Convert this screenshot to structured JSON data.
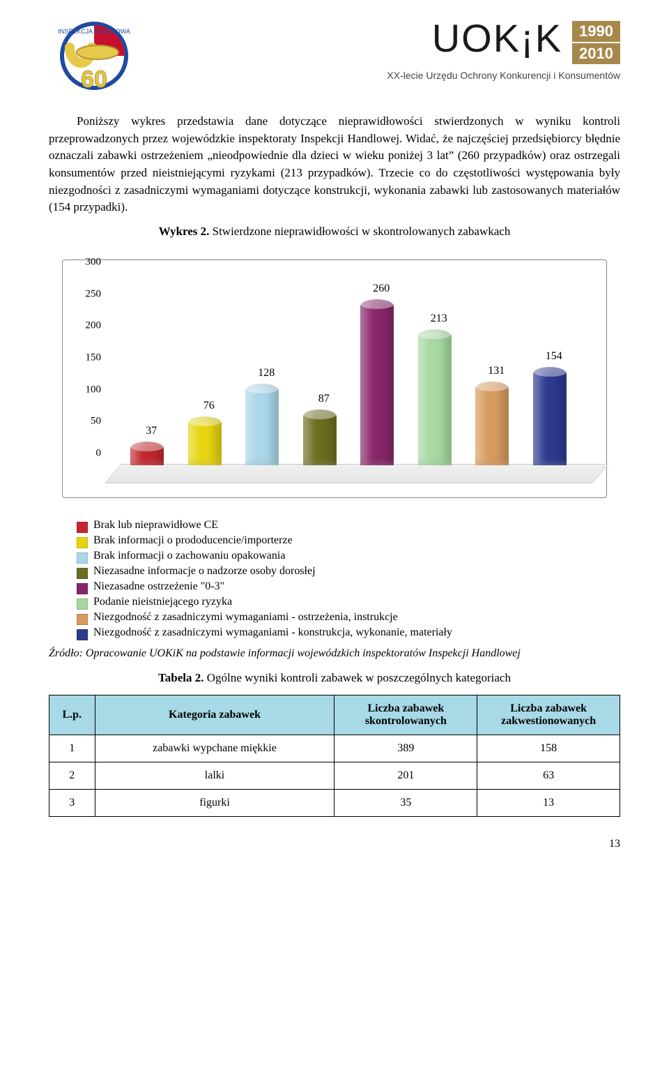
{
  "header": {
    "uokik_text": "UOK¡K",
    "year1": "1990",
    "year2": "2010",
    "tagline": "XX-lecie Urzędu Ochrony Konkurencji i Konsumentów",
    "badge_top": "INSPEKCJA HANDLOWA",
    "badge_num": "60"
  },
  "paragraph": "Poniższy wykres przedstawia dane dotyczące nieprawidłowości stwierdzonych w wyniku kontroli przeprowadzonych przez wojewódzkie inspektoraty Inspekcji Handlowej. Widać, że najczęściej przedsiębiorcy błędnie oznaczali zabawki ostrzeżeniem „nieodpowiednie dla dzieci w wieku poniżej 3 lat” (260 przypadków) oraz ostrzegali konsumentów przed nieistniejącymi ryzykami (213 przypadków). Trzecie co do częstotliwości występowania były niezgodności z zasadniczymi wymaganiami dotyczące konstrukcji, wykonania zabawki lub zastosowanych materiałów (154 przypadki).",
  "chart_title_prefix": "Wykres 2.",
  "chart_title_rest": " Stwierdzone nieprawidłowości w skontrolowanych zabawkach",
  "chart": {
    "type": "bar",
    "ylim": [
      0,
      300
    ],
    "ytick_step": 50,
    "yticks": [
      "0",
      "50",
      "100",
      "150",
      "200",
      "250",
      "300"
    ],
    "background_color": "#ffffff",
    "floor_color": "#ededed",
    "bars": [
      {
        "value": 37,
        "label": "37",
        "color": "#c1272d",
        "legend": "Brak lub nieprawidłowe CE"
      },
      {
        "value": 76,
        "label": "76",
        "color": "#e6d40e",
        "legend": "Brak informacji o prododucencie/importerze"
      },
      {
        "value": 128,
        "label": "128",
        "color": "#a9d6e9",
        "legend": "Brak informacji o zachowaniu opakowania"
      },
      {
        "value": 87,
        "label": "87",
        "color": "#6a6f1f",
        "legend": "Niezasadne informacje o nadzorze osoby dorosłej"
      },
      {
        "value": 260,
        "label": "260",
        "color": "#87266a",
        "legend": "Niezasadne ostrzeżenie \"0-3\""
      },
      {
        "value": 213,
        "label": "213",
        "color": "#a6d9a0",
        "legend": "Podanie nieistniejącego ryzyka"
      },
      {
        "value": 131,
        "label": "131",
        "color": "#d69b5e",
        "legend": "Niezgodność z zasadniczymi wymaganiami - ostrzeżenia, instrukcje"
      },
      {
        "value": 154,
        "label": "154",
        "color": "#2c3a8f",
        "legend": "Niezgodność z zasadniczymi wymaganiami - konstrukcja, wykonanie, materiały"
      }
    ]
  },
  "source": "Źródło: Opracowanie UOKiK na podstawie informacji wojewódzkich inspektoratów Inspekcji Handlowej",
  "table_title_prefix": "Tabela 2.",
  "table_title_rest": " Ogólne wyniki kontroli zabawek w poszczególnych kategoriach",
  "table": {
    "columns": [
      "L.p.",
      "Kategoria zabawek",
      "Liczba zabawek skontrolowanych",
      "Liczba zabawek zakwestionowanych"
    ],
    "col_widths": [
      "8%",
      "42%",
      "25%",
      "25%"
    ],
    "header_bg": "#a7d9e6",
    "rows": [
      [
        "1",
        "zabawki wypchane miękkie",
        "389",
        "158"
      ],
      [
        "2",
        "lalki",
        "201",
        "63"
      ],
      [
        "3",
        "figurki",
        "35",
        "13"
      ]
    ]
  },
  "page_number": "13"
}
